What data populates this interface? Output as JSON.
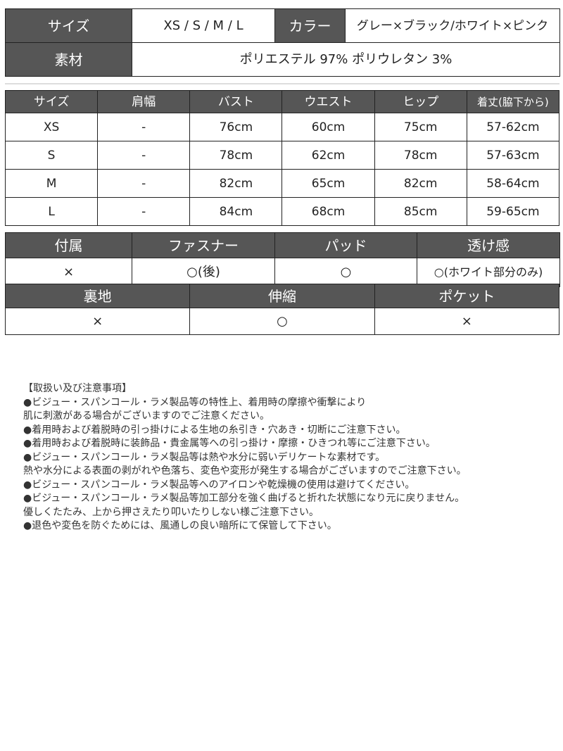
{
  "spec": {
    "size_label": "サイズ",
    "size_value": "XS / S / M / L",
    "color_label": "カラー",
    "color_value": "グレー×ブラック/ホワイト×ピンク",
    "material_label": "素材",
    "material_value": "ポリエステル 97% ポリウレタン 3%"
  },
  "size_table": {
    "headers": [
      "サイズ",
      "肩幅",
      "バスト",
      "ウエスト",
      "ヒップ",
      "着丈(脇下から)"
    ],
    "rows": [
      [
        "XS",
        "-",
        "76cm",
        "60cm",
        "75cm",
        "57-62cm"
      ],
      [
        "S",
        "-",
        "78cm",
        "62cm",
        "78cm",
        "57-63cm"
      ],
      [
        "M",
        "-",
        "82cm",
        "65cm",
        "82cm",
        "58-64cm"
      ],
      [
        "L",
        "-",
        "84cm",
        "68cm",
        "85cm",
        "59-65cm"
      ]
    ]
  },
  "features1": {
    "headers": [
      "付属",
      "ファスナー",
      "パッド",
      "透け感"
    ],
    "values": [
      "×",
      "○(後)",
      "○",
      "○(ホワイト部分のみ)"
    ]
  },
  "features2": {
    "headers": [
      "裏地",
      "伸縮",
      "ポケット"
    ],
    "values": [
      "×",
      "○",
      "×"
    ]
  },
  "notes": [
    "【取扱い及び注意事項】",
    "●ビジュー・スパンコール・ラメ製品等の特性上、着用時の摩擦や衝撃により",
    "肌に刺激がある場合がございますのでご注意ください。",
    "●着用時および着脱時の引っ掛けによる生地の糸引き・穴あき・切断にご注意下さい。",
    "●着用時および着脱時に装飾品・貴金属等への引っ掛け・摩擦・ひきつれ等にご注意下さい。",
    "●ビジュー・スパンコール・ラメ製品等は熱や水分に弱いデリケートな素材です。",
    "熱や水分による表面の剥がれや色落ち、変色や変形が発生する場合がございますのでご注意下さい。",
    "●ビジュー・スパンコール・ラメ製品等へのアイロンや乾燥機の使用は避けてください。",
    "●ビジュー・スパンコール・ラメ製品等加工部分を強く曲げると折れた状態になり元に戻りません。",
    "優しくたたみ、上から押さえたり叩いたりしない様ご注意下さい。",
    "●退色や変色を防ぐためには、風通しの良い暗所にて保管して下さい。"
  ],
  "colors": {
    "header_bg": "#565656",
    "header_text": "#ffffff",
    "border": "#222222"
  }
}
